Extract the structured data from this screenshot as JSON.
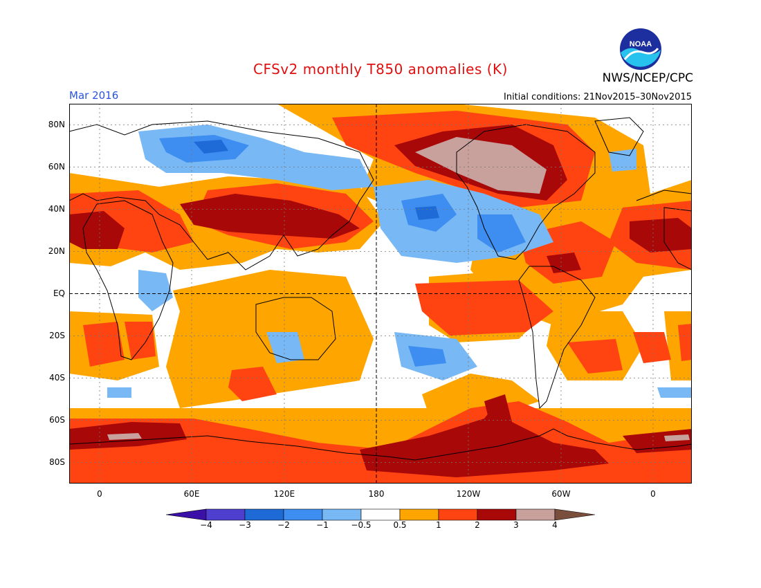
{
  "title": "CFSv2 monthly T850 anomalies (K)",
  "agency": "NWS/NCEP/CPC",
  "logo_text": "NOAA",
  "valid_month": "Mar 2016",
  "initial_conditions": "Initial conditions: 21Nov2015–30Nov2015",
  "lat_labels": [
    "80N",
    "60N",
    "40N",
    "20N",
    "EQ",
    "20S",
    "40S",
    "60S",
    "80S"
  ],
  "lon_labels": [
    "0",
    "60E",
    "120E",
    "180",
    "120W",
    "60W",
    "0"
  ],
  "colorbar": {
    "labels": [
      "−4",
      "−3",
      "−2",
      "−1",
      "−0.5",
      "0.5",
      "1",
      "2",
      "3",
      "4"
    ],
    "colors": [
      "#3b10a8",
      "#4f3fcf",
      "#1e6ad6",
      "#3d8ef0",
      "#78b8f5",
      "#ffffff",
      "#ffa500",
      "#ff4412",
      "#a80808",
      "#c8a09c",
      "#7a4e3c"
    ]
  },
  "colors": {
    "warm_1": "#ffa500",
    "warm_2": "#ff4412",
    "warm_3": "#a80808",
    "warm_4": "#c8a09c",
    "cool_1": "#78b8f5",
    "cool_2": "#3d8ef0",
    "cool_3": "#1e6ad6",
    "title": "#e01010",
    "date_label": "#2a53e0"
  }
}
